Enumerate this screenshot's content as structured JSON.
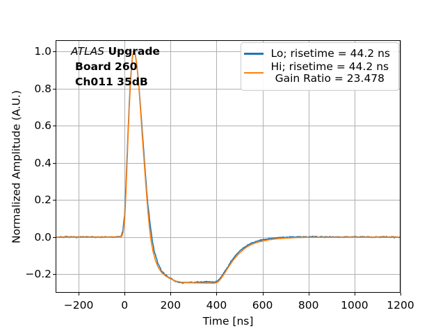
{
  "figure": {
    "annotation": {
      "line1_italic": "ATLAS",
      "line1_bold": "Upgrade",
      "line2": "Board 260",
      "line3": "Ch011 35dB"
    },
    "legend": {
      "entries": [
        {
          "color": "#1f77b4",
          "lines": [
            "Lo; risetime = 44.2 ns"
          ]
        },
        {
          "color": "#ff7f0e",
          "lines": [
            "Hi; risetime = 44.2 ns",
            "Gain Ratio = 23.478"
          ]
        }
      ]
    }
  },
  "colors": {
    "blue": "#1f77b4",
    "orange": "#ff7f0e",
    "grid": "#b0b0b0",
    "axis": "#000000",
    "legend_border": "#cccccc"
  },
  "chart_data": {
    "type": "line",
    "title": "",
    "xlabel": "Time [ns]",
    "ylabel": "Normalized Amplitude (A.U.)",
    "xlim": [
      -300,
      1200
    ],
    "ylim": [
      -0.3,
      1.06
    ],
    "xticks": [
      -200,
      0,
      200,
      400,
      600,
      800,
      1000,
      1200
    ],
    "xtick_labels": [
      "−200",
      "0",
      "200",
      "400",
      "600",
      "800",
      "1000",
      "1200"
    ],
    "yticks": [
      -0.2,
      0.0,
      0.2,
      0.4,
      0.6,
      0.8,
      1.0
    ],
    "ytick_labels": [
      "−0.2",
      "0.0",
      "0.2",
      "0.4",
      "0.6",
      "0.8",
      "1.0"
    ],
    "grid": true,
    "legend_position": "upper right",
    "annotation_lines": [
      "ATLAS Upgrade",
      "Board 260",
      "Ch011 35dB"
    ],
    "series": [
      {
        "name": "Lo; risetime = 44.2 ns",
        "color": "#1f77b4",
        "noise": 0.005,
        "points": [
          [
            -300,
            0
          ],
          [
            -100,
            0
          ],
          [
            -32,
            0
          ],
          [
            -16,
            0.004
          ],
          [
            -8,
            0.03
          ],
          [
            0,
            0.12
          ],
          [
            5,
            0.25
          ],
          [
            10,
            0.41
          ],
          [
            15,
            0.57
          ],
          [
            20,
            0.71
          ],
          [
            25,
            0.83
          ],
          [
            30,
            0.92
          ],
          [
            35,
            0.98
          ],
          [
            40,
            1.0
          ],
          [
            45,
            0.99
          ],
          [
            50,
            0.955
          ],
          [
            55,
            0.905
          ],
          [
            60,
            0.845
          ],
          [
            70,
            0.69
          ],
          [
            80,
            0.52
          ],
          [
            90,
            0.35
          ],
          [
            100,
            0.19
          ],
          [
            110,
            0.08
          ],
          [
            120,
            -0.015
          ],
          [
            128,
            -0.07
          ],
          [
            138,
            -0.115
          ],
          [
            148,
            -0.15
          ],
          [
            162,
            -0.185
          ],
          [
            178,
            -0.205
          ],
          [
            200,
            -0.222
          ],
          [
            215,
            -0.235
          ],
          [
            230,
            -0.242
          ],
          [
            250,
            -0.246
          ],
          [
            270,
            -0.2455
          ],
          [
            290,
            -0.2445
          ],
          [
            310,
            -0.2435
          ],
          [
            330,
            -0.2425
          ],
          [
            350,
            -0.2415
          ],
          [
            370,
            -0.2415
          ],
          [
            385,
            -0.2425
          ],
          [
            395,
            -0.241
          ],
          [
            405,
            -0.2355
          ],
          [
            415,
            -0.2235
          ],
          [
            425,
            -0.2065
          ],
          [
            435,
            -0.1875
          ],
          [
            445,
            -0.1675
          ],
          [
            455,
            -0.1465
          ],
          [
            465,
            -0.1275
          ],
          [
            475,
            -0.1105
          ],
          [
            485,
            -0.0955
          ],
          [
            495,
            -0.0825
          ],
          [
            505,
            -0.0705
          ],
          [
            515,
            -0.0605
          ],
          [
            525,
            -0.0515
          ],
          [
            540,
            -0.0405
          ],
          [
            555,
            -0.0315
          ],
          [
            570,
            -0.0245
          ],
          [
            585,
            -0.0185
          ],
          [
            600,
            -0.0145
          ],
          [
            630,
            -0.008
          ],
          [
            660,
            -0.004
          ],
          [
            700,
            -0.001
          ],
          [
            750,
            0.001
          ],
          [
            800,
            0.0015
          ],
          [
            900,
            0.001
          ],
          [
            1000,
            0.0005
          ],
          [
            1100,
            0
          ],
          [
            1200,
            0
          ]
        ]
      },
      {
        "name": "Hi; risetime = 44.2 ns  Gain Ratio = 23.478",
        "color": "#ff7f0e",
        "noise": 0.0016,
        "points": [
          [
            -300,
            0
          ],
          [
            -100,
            0
          ],
          [
            -28,
            0
          ],
          [
            -14,
            0.002
          ],
          [
            -7,
            0.02
          ],
          [
            0,
            0.09
          ],
          [
            5,
            0.21
          ],
          [
            10,
            0.37
          ],
          [
            15,
            0.54
          ],
          [
            20,
            0.69
          ],
          [
            25,
            0.81
          ],
          [
            30,
            0.91
          ],
          [
            35,
            0.975
          ],
          [
            40,
            1.0
          ],
          [
            44,
            0.995
          ],
          [
            48,
            0.97
          ],
          [
            52,
            0.935
          ],
          [
            56,
            0.89
          ],
          [
            62,
            0.81
          ],
          [
            70,
            0.67
          ],
          [
            80,
            0.49
          ],
          [
            90,
            0.32
          ],
          [
            100,
            0.16
          ],
          [
            108,
            0.05
          ],
          [
            115,
            -0.02
          ],
          [
            124,
            -0.08
          ],
          [
            134,
            -0.125
          ],
          [
            144,
            -0.158
          ],
          [
            160,
            -0.19
          ],
          [
            176,
            -0.208
          ],
          [
            200,
            -0.225
          ],
          [
            215,
            -0.2335
          ],
          [
            230,
            -0.2395
          ],
          [
            250,
            -0.2435
          ],
          [
            270,
            -0.2455
          ],
          [
            290,
            -0.2465
          ],
          [
            310,
            -0.247
          ],
          [
            330,
            -0.247
          ],
          [
            350,
            -0.2475
          ],
          [
            370,
            -0.248
          ],
          [
            385,
            -0.2485
          ],
          [
            395,
            -0.2475
          ],
          [
            405,
            -0.2425
          ],
          [
            415,
            -0.2305
          ],
          [
            425,
            -0.2135
          ],
          [
            435,
            -0.195
          ],
          [
            445,
            -0.1755
          ],
          [
            455,
            -0.1555
          ],
          [
            465,
            -0.1375
          ],
          [
            475,
            -0.1205
          ],
          [
            485,
            -0.1055
          ],
          [
            495,
            -0.0925
          ],
          [
            505,
            -0.0805
          ],
          [
            515,
            -0.0695
          ],
          [
            525,
            -0.0595
          ],
          [
            540,
            -0.0475
          ],
          [
            555,
            -0.0385
          ],
          [
            570,
            -0.0315
          ],
          [
            585,
            -0.0255
          ],
          [
            600,
            -0.0215
          ],
          [
            630,
            -0.0145
          ],
          [
            660,
            -0.0095
          ],
          [
            700,
            -0.0055
          ],
          [
            750,
            -0.003
          ],
          [
            800,
            -0.0015
          ],
          [
            900,
            -0.001
          ],
          [
            1000,
            -0.0005
          ],
          [
            1100,
            0
          ],
          [
            1200,
            0
          ]
        ]
      }
    ]
  }
}
